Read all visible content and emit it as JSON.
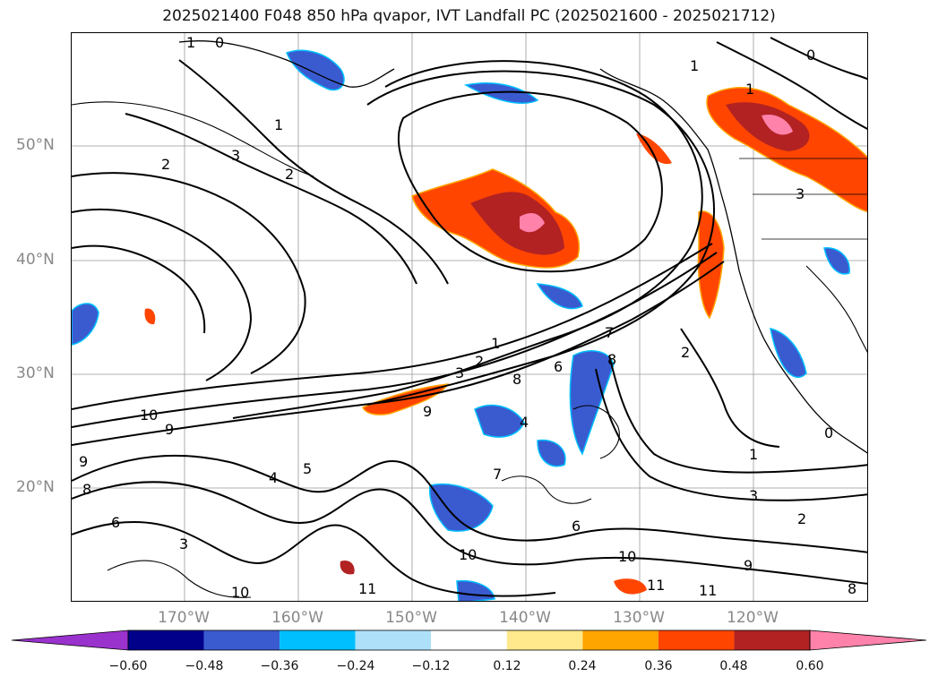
{
  "title": "2025021400 F048 850 hPa qvapor, IVT Landfall PC (2025021600 - 2025021712)",
  "lat_labels": [
    "50°N",
    "40°N",
    "30°N",
    "20°N"
  ],
  "lon_labels": [
    "170°W",
    "160°W",
    "150°W",
    "140°W",
    "130°W",
    "120°W"
  ],
  "colorbar": {
    "ticks": [
      "−0.60",
      "−0.48",
      "−0.36",
      "−0.24",
      "−0.12",
      "0.12",
      "0.24",
      "0.36",
      "0.48",
      "0.60"
    ],
    "colors": [
      "#9a32cd",
      "#00008b",
      "#3a5bd0",
      "#00bfff",
      "#aee0fa",
      "#ffffff",
      "#ffe98c",
      "#ffa500",
      "#ff4500",
      "#b22222",
      "#ff82ab"
    ]
  },
  "contour_labels": [
    "1",
    "0",
    "1",
    "2",
    "3",
    "2",
    "1",
    "0",
    "1",
    "2",
    "3",
    "1",
    "2",
    "3",
    "6",
    "8",
    "7",
    "8",
    "9",
    "10",
    "9",
    "4",
    "5",
    "4",
    "7",
    "6",
    "10",
    "10",
    "11",
    "11",
    "11",
    "9",
    "2",
    "3",
    "1",
    "0",
    "9",
    "8",
    "6",
    "3",
    "8",
    "10"
  ],
  "colors": {
    "frame": "#000000",
    "grid": "#999999",
    "axis_label": "#888888"
  }
}
